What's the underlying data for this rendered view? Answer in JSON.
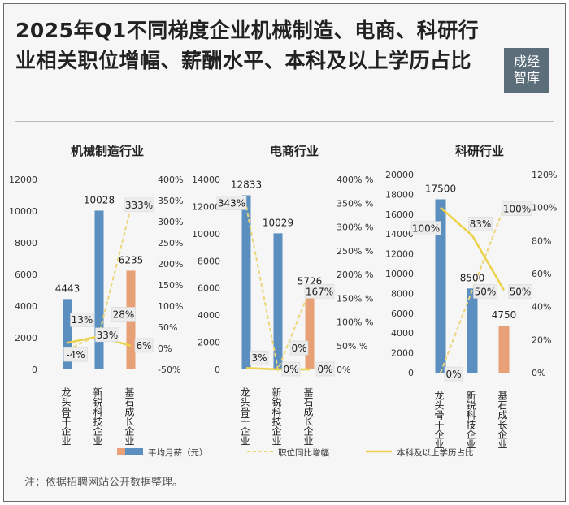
{
  "title": "2025年Q1不同梯度企业机械制造、电商、科研行业相关职位增幅、薪酬水平、本科及以上学历占比",
  "logo": {
    "line1": "成经",
    "line2": "智库"
  },
  "note": "注：依据招聘网站公开数据整理。",
  "legend": {
    "salary_label": "平均月薪（元）",
    "growth_label": "职位同比增幅",
    "degree_label": "本科及以上学历占比"
  },
  "colors": {
    "salary_blue": "#5b8fbf",
    "salary_orange": "#e8a076",
    "growth_line": "#ecd57a",
    "degree_line": "#ecd14b"
  },
  "chart_data": [
    {
      "type": "bar",
      "title": "机械制造行业",
      "categories": [
        "龙头骨干企业",
        "新锐科技企业",
        "基石成长企业"
      ],
      "series": [
        {
          "name": "平均月薪（元）",
          "values": [
            4443,
            10028,
            6235
          ]
        },
        {
          "name": "职位同比增幅",
          "type": "line",
          "axis": "right",
          "values": [
            -4,
            33,
            333
          ]
        },
        {
          "name": "本科及以上学历占比",
          "type": "line",
          "axis": "right",
          "values": [
            13,
            28,
            6
          ]
        }
      ],
      "ylim_left": [
        0,
        12000
      ],
      "left_ticks": [
        "0",
        "2000",
        "4000",
        "6000",
        "8000",
        "10000",
        "12000"
      ],
      "ylim_right": [
        -50,
        400
      ],
      "right_ticks": [
        "-50%",
        "0%",
        "50%",
        "100%",
        "150%",
        "200%",
        "250%",
        "300%",
        "350%",
        "400%"
      ],
      "bar_labels": [
        "4443",
        "10028",
        "6235"
      ],
      "growth_labels": [
        "-4%",
        "33%",
        "333%"
      ],
      "degree_labels": [
        "13%",
        "28%",
        "6%"
      ]
    },
    {
      "type": "bar",
      "title": "电商行业",
      "categories": [
        "龙头骨干企业",
        "新锐科技企业",
        "基石成长企业"
      ],
      "series": [
        {
          "name": "平均月薪（元）",
          "values": [
            12833,
            10029,
            5726
          ]
        },
        {
          "name": "职位同比增幅",
          "type": "line",
          "axis": "right",
          "values": [
            343,
            0,
            167
          ]
        },
        {
          "name": "本科及以上学历占比",
          "type": "line",
          "axis": "right",
          "values": [
            3,
            0,
            0
          ]
        }
      ],
      "ylim_left": [
        0,
        14000
      ],
      "left_ticks": [
        "0",
        "2000",
        "4000",
        "6000",
        "8000",
        "10000",
        "12000",
        "14000"
      ],
      "ylim_right": [
        0,
        400
      ],
      "right_ticks": [
        "0%",
        "50% %",
        "100% %",
        "150% %",
        "200% %",
        "250% %",
        "300% %",
        "350% %",
        "400% %"
      ],
      "bar_labels": [
        "12833",
        "10029",
        "5726"
      ],
      "growth_labels": [
        "343%",
        "0%",
        "167%"
      ],
      "degree_labels": [
        "3%",
        "0%",
        "0%"
      ]
    },
    {
      "type": "bar",
      "title": "科研行业",
      "categories": [
        "龙头骨干企业",
        "新锐科技企业",
        "基石成长企业"
      ],
      "series": [
        {
          "name": "平均月薪（元）",
          "values": [
            17500,
            8500,
            4750
          ]
        },
        {
          "name": "职位同比增幅",
          "type": "line",
          "axis": "right",
          "values": [
            0,
            50,
            100
          ]
        },
        {
          "name": "本科及以上学历占比",
          "type": "line",
          "axis": "right",
          "values": [
            100,
            83,
            50
          ]
        }
      ],
      "ylim_left": [
        0,
        20000
      ],
      "left_ticks": [
        "0",
        "2000",
        "4000",
        "6000",
        "8000",
        "10000",
        "12000",
        "14000",
        "16000",
        "18000",
        "20000"
      ],
      "ylim_right": [
        0,
        120
      ],
      "right_ticks": [
        "0%",
        "20%",
        "40%",
        "60%",
        "80%",
        "100%",
        "120%"
      ],
      "bar_labels": [
        "17500",
        "8500",
        "4750"
      ],
      "growth_labels": [
        "0%",
        "50%",
        "100%"
      ],
      "degree_labels": [
        "100%",
        "83%",
        "50%"
      ]
    }
  ]
}
